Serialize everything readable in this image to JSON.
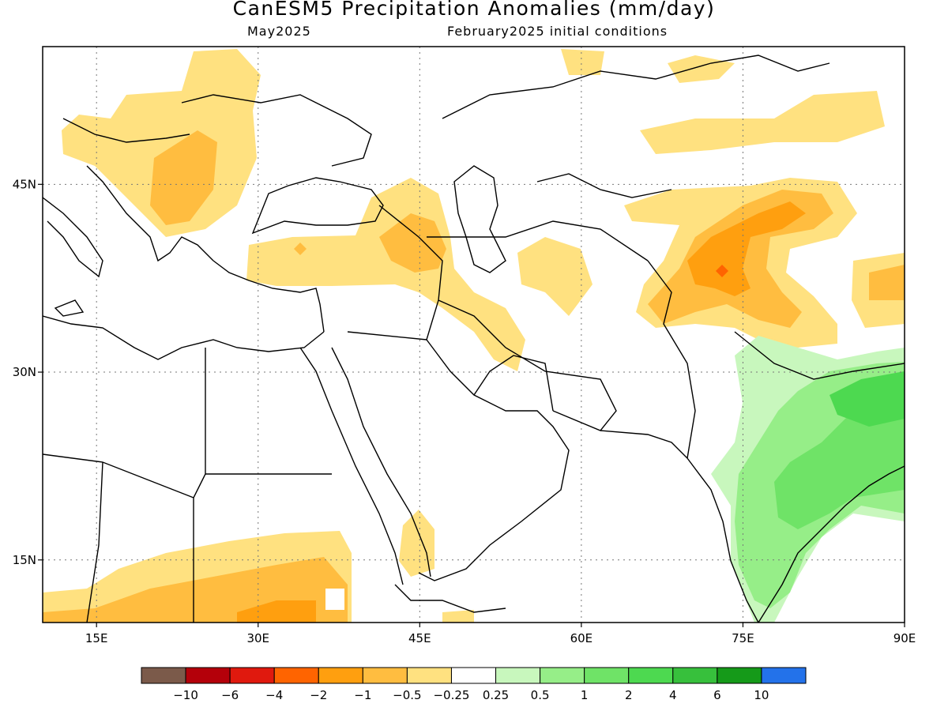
{
  "title": "CanESM5 Precipitation Anomalies (mm/day)",
  "subtitle_left": "May2025",
  "subtitle_right": "February2025 initial conditions",
  "map": {
    "lon_range": [
      10,
      90
    ],
    "lat_range": [
      10,
      56
    ],
    "lon_ticks": [
      {
        "value": 15,
        "label": "15E"
      },
      {
        "value": 30,
        "label": "30E"
      },
      {
        "value": 45,
        "label": "45E"
      },
      {
        "value": 60,
        "label": "60E"
      },
      {
        "value": 75,
        "label": "75E"
      },
      {
        "value": 90,
        "label": "90E"
      }
    ],
    "lat_ticks": [
      {
        "value": 15,
        "label": "15N"
      },
      {
        "value": 30,
        "label": "30N"
      },
      {
        "value": 45,
        "label": "45N"
      }
    ],
    "grid": "dotted"
  },
  "colorbar": {
    "colors": [
      "#7b5a4a",
      "#b4000a",
      "#e0190e",
      "#ff6400",
      "#ff9f0f",
      "#ffbd40",
      "#ffe180",
      "#ffffff",
      "#c8f7bd",
      "#96ee88",
      "#6fe367",
      "#4dd950",
      "#37c03c",
      "#159a19",
      "#2372ea"
    ],
    "labels": [
      "−10",
      "−6",
      "−4",
      "−2",
      "−1",
      "−0.5",
      "−0.25",
      "0.25",
      "0.5",
      "1",
      "2",
      "4",
      "6",
      "10"
    ]
  },
  "icon": "world-map-coastlines"
}
